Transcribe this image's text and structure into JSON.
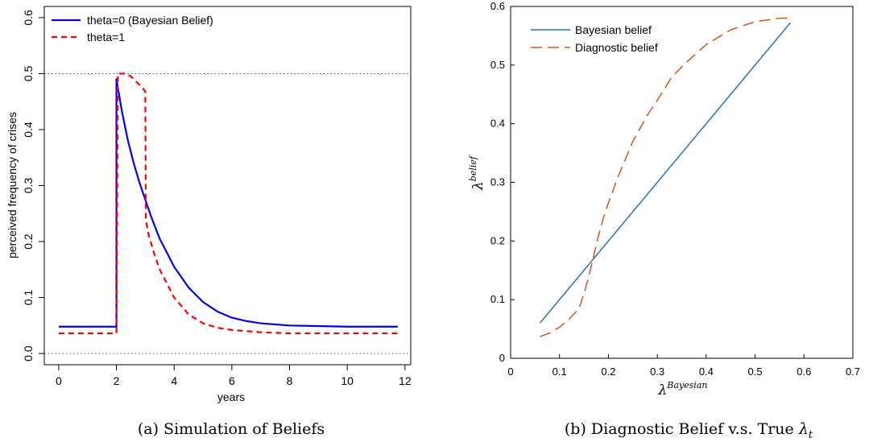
{
  "chart_data": [
    {
      "type": "line",
      "caption": "(a) Simulation of Beliefs",
      "xlabel": "years",
      "ylabel": "perceived frequency of crises",
      "xlim": [
        -0.5,
        12.2
      ],
      "ylim": [
        -0.02,
        0.62
      ],
      "x_ticks": [
        "0",
        "2",
        "4",
        "6",
        "8",
        "10",
        "12"
      ],
      "x_tick_values": [
        0,
        2,
        4,
        6,
        8,
        10,
        12
      ],
      "y_ticks": [
        "0.0",
        "0.1",
        "0.2",
        "0.3",
        "0.4",
        "0.5",
        "0.6"
      ],
      "y_tick_values": [
        0,
        0.1,
        0.2,
        0.3,
        0.4,
        0.5,
        0.6
      ],
      "reference_lines": [
        0.0,
        0.5
      ],
      "legend_position": "top-left",
      "series": [
        {
          "name": "theta=0 (Bayesian Belief)",
          "color": "#0000ff",
          "dash": "solid",
          "x": [
            0,
            2.0,
            2.0,
            2.2,
            2.4,
            2.6,
            2.8,
            3.0,
            3.2,
            3.5,
            3.8,
            4.0,
            4.5,
            5.0,
            5.5,
            6.0,
            6.5,
            7.0,
            8.0,
            9.0,
            10.0,
            11.0,
            11.75
          ],
          "y": [
            0.048,
            0.048,
            0.49,
            0.43,
            0.38,
            0.34,
            0.305,
            0.275,
            0.245,
            0.205,
            0.175,
            0.155,
            0.118,
            0.092,
            0.075,
            0.064,
            0.058,
            0.054,
            0.05,
            0.049,
            0.048,
            0.048,
            0.048
          ]
        },
        {
          "name": "theta=1",
          "color": "#ff0000",
          "dash": "dashed",
          "x": [
            0,
            2.0,
            2.05,
            2.1,
            2.3,
            2.5,
            2.7,
            2.9,
            3.0,
            3.02,
            3.1,
            3.3,
            3.5,
            4.0,
            4.5,
            5.0,
            5.5,
            6.0,
            7.0,
            8.0,
            9.0,
            10.0,
            11.75
          ],
          "y": [
            0.036,
            0.036,
            0.5,
            0.5,
            0.5,
            0.495,
            0.485,
            0.475,
            0.468,
            0.24,
            0.215,
            0.18,
            0.15,
            0.1,
            0.07,
            0.054,
            0.046,
            0.042,
            0.038,
            0.036,
            0.036,
            0.036,
            0.036
          ]
        }
      ]
    },
    {
      "type": "line",
      "caption": "(b) Diagnostic Belief v.s. True",
      "caption_math": "λ",
      "caption_math_sub": "t",
      "xlabel_symbol": "λ",
      "xlabel_sup": "Bayesian",
      "ylabel_symbol": "λ",
      "ylabel_sup": "belief",
      "xlim": [
        0,
        0.7
      ],
      "ylim": [
        0,
        0.6
      ],
      "x_ticks": [
        "0",
        "0.1",
        "0.2",
        "0.3",
        "0.4",
        "0.5",
        "0.6",
        "0.7"
      ],
      "x_tick_values": [
        0,
        0.1,
        0.2,
        0.3,
        0.4,
        0.5,
        0.6,
        0.7
      ],
      "y_ticks": [
        "0",
        "0.1",
        "0.2",
        "0.3",
        "0.4",
        "0.5",
        "0.6"
      ],
      "y_tick_values": [
        0,
        0.1,
        0.2,
        0.3,
        0.4,
        0.5,
        0.6
      ],
      "legend_position": "top-left",
      "series": [
        {
          "name": "Bayesian belief",
          "color": "#1f77b4",
          "dash": "solid",
          "x": [
            0.06,
            0.572
          ],
          "y": [
            0.06,
            0.572
          ]
        },
        {
          "name": "Diagnostic belief",
          "color": "#d95319",
          "dash": "dashed",
          "x": [
            0.06,
            0.08,
            0.1,
            0.12,
            0.14,
            0.15,
            0.16,
            0.17,
            0.18,
            0.19,
            0.2,
            0.22,
            0.25,
            0.28,
            0.3,
            0.33,
            0.36,
            0.4,
            0.45,
            0.5,
            0.55,
            0.572
          ],
          "y": [
            0.037,
            0.043,
            0.053,
            0.067,
            0.085,
            0.11,
            0.14,
            0.175,
            0.21,
            0.24,
            0.265,
            0.31,
            0.37,
            0.415,
            0.44,
            0.48,
            0.505,
            0.535,
            0.56,
            0.574,
            0.58,
            0.58
          ]
        }
      ]
    }
  ]
}
